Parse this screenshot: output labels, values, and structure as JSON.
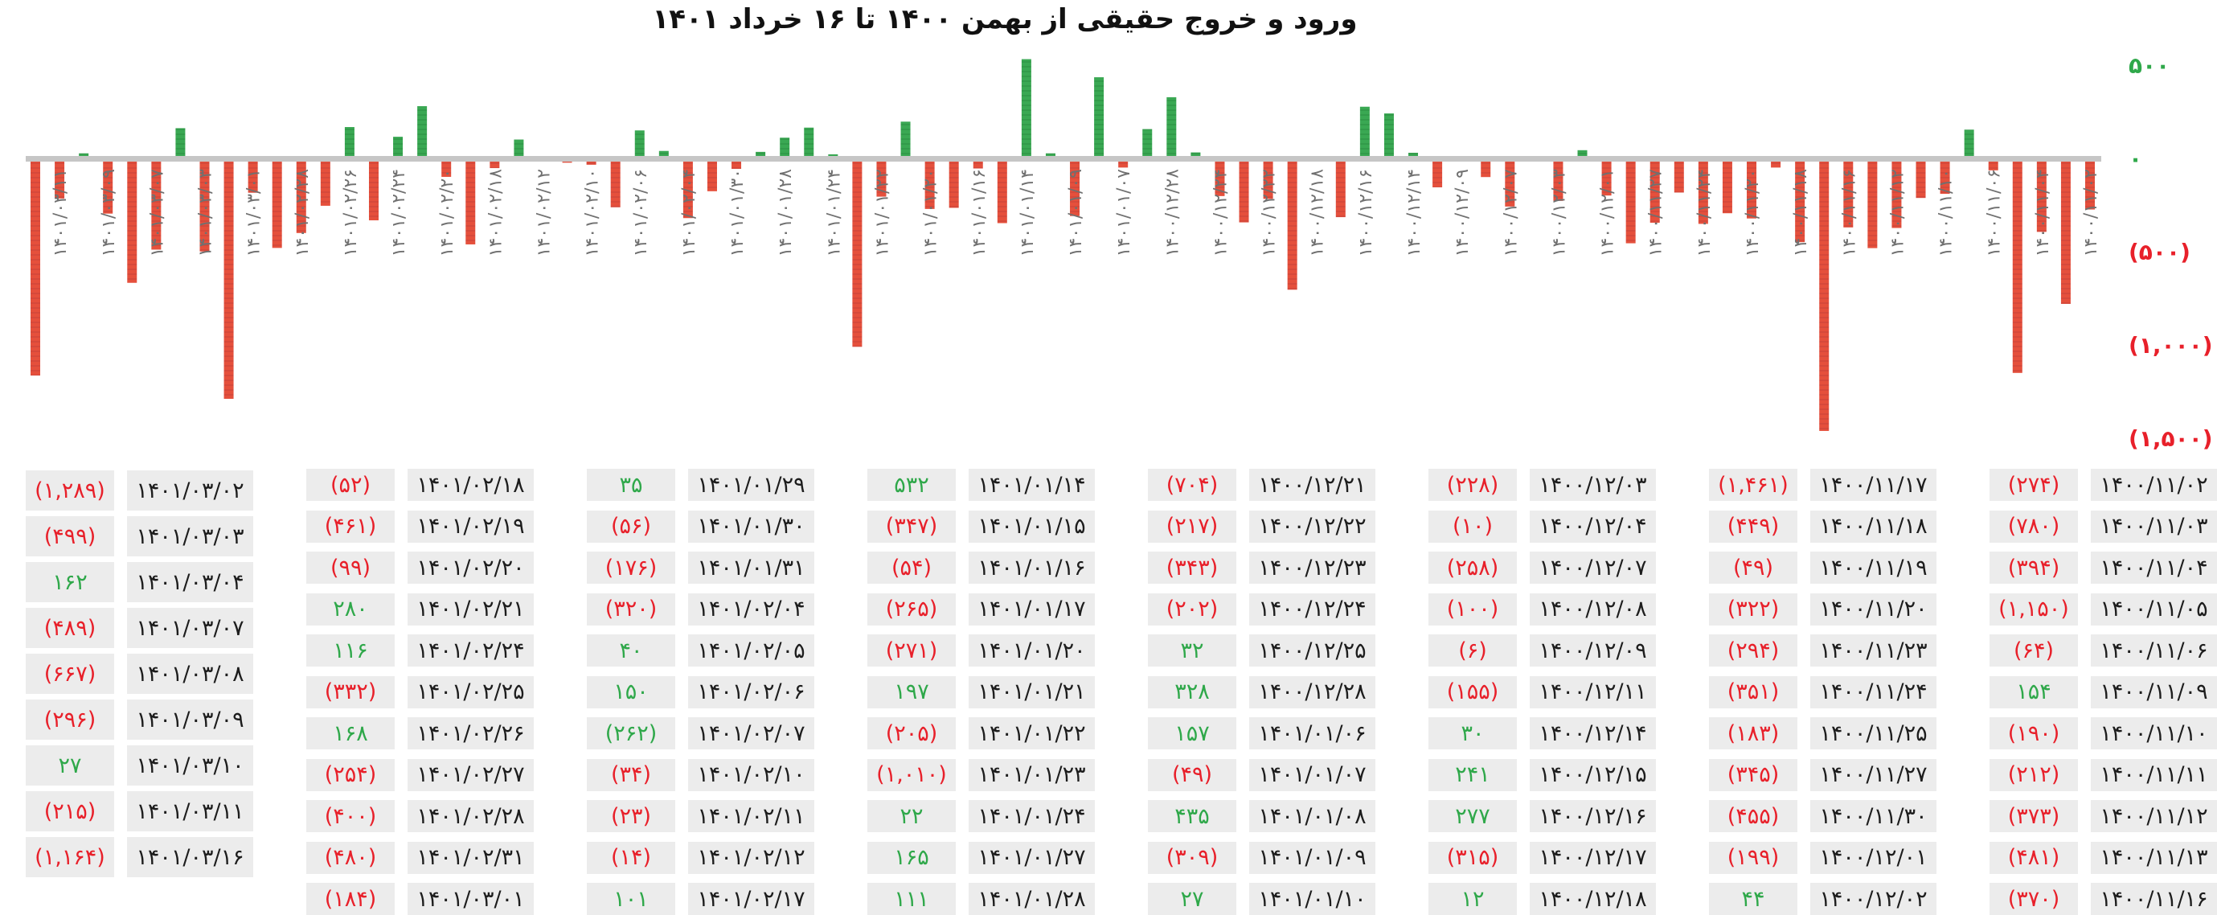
{
  "title": "ورود و خروج حقیقی  از بهمن ۱۴۰۰ تا ۱۶ خرداد ۱۴۰۱",
  "colors": {
    "positive": "#2fa84a",
    "negative": "#e8202a",
    "bar_positive": "#3aa853",
    "bar_negative": "#e5503c",
    "zero_line": "#c6c6c6",
    "cell_bg": "#ececec"
  },
  "chart_data": {
    "type": "bar",
    "title": "ورود و خروج حقیقی  از بهمن ۱۴۰۰ تا ۱۶ خرداد ۱۴۰۱",
    "x_order": "right-to-left (earliest at right)",
    "ylim": [
      -1500,
      500
    ],
    "y_ticks": [
      500,
      0,
      -500,
      -1000,
      -1500
    ],
    "y_tick_labels": [
      "۵۰۰",
      "۰",
      "(۵۰۰)",
      "(۱,۰۰۰)",
      "(۱,۵۰۰)"
    ],
    "y_axis_position": "right",
    "grid": false,
    "categories": [
      "۱۴۰۰/۱۱/۰۲",
      "۱۴۰۰/۱۱/۰۳",
      "۱۴۰۰/۱۱/۰۴",
      "۱۴۰۰/۱۱/۰۵",
      "۱۴۰۰/۱۱/۰۶",
      "۱۴۰۰/۱۱/۰۹",
      "۱۴۰۰/۱۱/۱۰",
      "۱۴۰۰/۱۱/۱۱",
      "۱۴۰۰/۱۱/۱۲",
      "۱۴۰۰/۱۱/۱۳",
      "۱۴۰۰/۱۱/۱۶",
      "۱۴۰۰/۱۱/۱۷",
      "۱۴۰۰/۱۱/۱۸",
      "۱۴۰۰/۱۱/۱۹",
      "۱۴۰۰/۱۱/۲۰",
      "۱۴۰۰/۱۱/۲۳",
      "۱۴۰۰/۱۱/۲۴",
      "۱۴۰۰/۱۱/۲۵",
      "۱۴۰۰/۱۱/۲۷",
      "۱۴۰۰/۱۱/۳۰",
      "۱۴۰۰/۱۲/۰۱",
      "۱۴۰۰/۱۲/۰۲",
      "۱۴۰۰/۱۲/۰۳",
      "۱۴۰۰/۱۲/۰۴",
      "۱۴۰۰/۱۲/۰۷",
      "۱۴۰۰/۱۲/۰۸",
      "۱۴۰۰/۱۲/۰۹",
      "۱۴۰۰/۱۲/۱۱",
      "۱۴۰۰/۱۲/۱۴",
      "۱۴۰۰/۱۲/۱۵",
      "۱۴۰۰/۱۲/۱۶",
      "۱۴۰۰/۱۲/۱۷",
      "۱۴۰۰/۱۲/۱۸",
      "۱۴۰۰/۱۲/۲۱",
      "۱۴۰۰/۱۲/۲۲",
      "۱۴۰۰/۱۲/۲۳",
      "۱۴۰۰/۱۲/۲۴",
      "۱۴۰۰/۱۲/۲۵",
      "۱۴۰۰/۱۲/۲۸",
      "۱۴۰۱/۰۱/۰۶",
      "۱۴۰۱/۰۱/۰۷",
      "۱۴۰۱/۰۱/۰۸",
      "۱۴۰۱/۰۱/۰۹",
      "۱۴۰۱/۰۱/۱۰",
      "۱۴۰۱/۰۱/۱۴",
      "۱۴۰۱/۰۱/۱۵",
      "۱۴۰۱/۰۱/۱۶",
      "۱۴۰۱/۰۱/۱۷",
      "۱۴۰۱/۰۱/۲۰",
      "۱۴۰۱/۰۱/۲۱",
      "۱۴۰۱/۰۱/۲۲",
      "۱۴۰۱/۰۱/۲۳",
      "۱۴۰۱/۰۱/۲۴",
      "۱۴۰۱/۰۱/۲۷",
      "۱۴۰۱/۰۱/۲۸",
      "۱۴۰۱/۰۱/۲۹",
      "۱۴۰۱/۰۱/۳۰",
      "۱۴۰۱/۰۱/۳۱",
      "۱۴۰۱/۰۲/۰۴",
      "۱۴۰۱/۰۲/۰۵",
      "۱۴۰۱/۰۲/۰۶",
      "۱۴۰۱/۰۲/۰۷",
      "۱۴۰۱/۰۲/۱۰",
      "۱۴۰۱/۰۲/۱۱",
      "۱۴۰۱/۰۲/۱۲",
      "۱۴۰۱/۰۲/۱۷",
      "۱۴۰۱/۰۲/۱۸",
      "۱۴۰۱/۰۲/۱۹",
      "۱۴۰۱/۰۲/۲۰",
      "۱۴۰۱/۰۲/۲۱",
      "۱۴۰۱/۰۲/۲۴",
      "۱۴۰۱/۰۲/۲۵",
      "۱۴۰۱/۰۲/۲۶",
      "۱۴۰۱/۰۲/۲۷",
      "۱۴۰۱/۰۲/۲۸",
      "۱۴۰۱/۰۲/۳۱",
      "۱۴۰۱/۰۳/۰۱",
      "۱۴۰۱/۰۳/۰۲",
      "۱۴۰۱/۰۳/۰۳",
      "۱۴۰۱/۰۳/۰۴",
      "۱۴۰۱/۰۳/۰۷",
      "۱۴۰۱/۰۳/۰۸",
      "۱۴۰۱/۰۳/۰۹",
      "۱۴۰۱/۰۳/۱۰",
      "۱۴۰۱/۰۳/۱۱",
      "۱۴۰۱/۰۳/۱۶"
    ],
    "values": [
      -274,
      -780,
      -394,
      -1150,
      -64,
      154,
      -190,
      -212,
      -373,
      -481,
      -370,
      -1461,
      -449,
      -49,
      -322,
      -294,
      -351,
      -183,
      -345,
      -455,
      -199,
      44,
      -228,
      -10,
      -258,
      -100,
      -6,
      -155,
      30,
      241,
      277,
      -315,
      12,
      -704,
      -217,
      -343,
      -202,
      32,
      328,
      157,
      -49,
      435,
      -309,
      27,
      532,
      -347,
      -54,
      -265,
      -271,
      197,
      -205,
      -1010,
      22,
      165,
      111,
      35,
      -56,
      -176,
      -320,
      40,
      150,
      -262,
      -34,
      -23,
      -14,
      101,
      -52,
      -461,
      -99,
      280,
      116,
      -332,
      168,
      -254,
      -400,
      -480,
      -184,
      -1289,
      -499,
      162,
      -489,
      -667,
      -296,
      27,
      -215,
      -1164
    ]
  },
  "table": {
    "groups": [
      {
        "rows": [
          {
            "date": "۱۴۰۱/۰۳/۰۲",
            "value": "(۱,۲۸۹)",
            "color": "red"
          },
          {
            "date": "۱۴۰۱/۰۳/۰۳",
            "value": "(۴۹۹)",
            "color": "red"
          },
          {
            "date": "۱۴۰۱/۰۳/۰۴",
            "value": "۱۶۲",
            "color": "green"
          },
          {
            "date": "۱۴۰۱/۰۳/۰۷",
            "value": "(۴۸۹)",
            "color": "red"
          },
          {
            "date": "۱۴۰۱/۰۳/۰۸",
            "value": "(۶۶۷)",
            "color": "red"
          },
          {
            "date": "۱۴۰۱/۰۳/۰۹",
            "value": "(۲۹۶)",
            "color": "red"
          },
          {
            "date": "۱۴۰۱/۰۳/۱۰",
            "value": "۲۷",
            "color": "green"
          },
          {
            "date": "۱۴۰۱/۰۳/۱۱",
            "value": "(۲۱۵)",
            "color": "red"
          },
          {
            "date": "۱۴۰۱/۰۳/۱۶",
            "value": "(۱,۱۶۴)",
            "color": "red"
          }
        ]
      },
      {
        "rows": [
          {
            "date": "۱۴۰۱/۰۲/۱۸",
            "value": "(۵۲)",
            "color": "red"
          },
          {
            "date": "۱۴۰۱/۰۲/۱۹",
            "value": "(۴۶۱)",
            "color": "red"
          },
          {
            "date": "۱۴۰۱/۰۲/۲۰",
            "value": "(۹۹)",
            "color": "red"
          },
          {
            "date": "۱۴۰۱/۰۲/۲۱",
            "value": "۲۸۰",
            "color": "green"
          },
          {
            "date": "۱۴۰۱/۰۲/۲۴",
            "value": "۱۱۶",
            "color": "green"
          },
          {
            "date": "۱۴۰۱/۰۲/۲۵",
            "value": "(۳۳۲)",
            "color": "red"
          },
          {
            "date": "۱۴۰۱/۰۲/۲۶",
            "value": "۱۶۸",
            "color": "green"
          },
          {
            "date": "۱۴۰۱/۰۲/۲۷",
            "value": "(۲۵۴)",
            "color": "red"
          },
          {
            "date": "۱۴۰۱/۰۲/۲۸",
            "value": "(۴۰۰)",
            "color": "red"
          },
          {
            "date": "۱۴۰۱/۰۲/۳۱",
            "value": "(۴۸۰)",
            "color": "red"
          },
          {
            "date": "۱۴۰۱/۰۳/۰۱",
            "value": "(۱۸۴)",
            "color": "red"
          }
        ]
      },
      {
        "rows": [
          {
            "date": "۱۴۰۱/۰۱/۲۹",
            "value": "۳۵",
            "color": "green"
          },
          {
            "date": "۱۴۰۱/۰۱/۳۰",
            "value": "(۵۶)",
            "color": "red"
          },
          {
            "date": "۱۴۰۱/۰۱/۳۱",
            "value": "(۱۷۶)",
            "color": "red"
          },
          {
            "date": "۱۴۰۱/۰۲/۰۴",
            "value": "(۳۲۰)",
            "color": "red"
          },
          {
            "date": "۱۴۰۱/۰۲/۰۵",
            "value": "۴۰",
            "color": "green"
          },
          {
            "date": "۱۴۰۱/۰۲/۰۶",
            "value": "۱۵۰",
            "color": "green"
          },
          {
            "date": "۱۴۰۱/۰۲/۰۷",
            "value": "(۲۶۲)",
            "color": "green"
          },
          {
            "date": "۱۴۰۱/۰۲/۱۰",
            "value": "(۳۴)",
            "color": "red"
          },
          {
            "date": "۱۴۰۱/۰۲/۱۱",
            "value": "(۲۳)",
            "color": "red"
          },
          {
            "date": "۱۴۰۱/۰۲/۱۲",
            "value": "(۱۴)",
            "color": "red"
          },
          {
            "date": "۱۴۰۱/۰۲/۱۷",
            "value": "۱۰۱",
            "color": "green"
          }
        ]
      },
      {
        "rows": [
          {
            "date": "۱۴۰۱/۰۱/۱۴",
            "value": "۵۳۲",
            "color": "green"
          },
          {
            "date": "۱۴۰۱/۰۱/۱۵",
            "value": "(۳۴۷)",
            "color": "red"
          },
          {
            "date": "۱۴۰۱/۰۱/۱۶",
            "value": "(۵۴)",
            "color": "red"
          },
          {
            "date": "۱۴۰۱/۰۱/۱۷",
            "value": "(۲۶۵)",
            "color": "red"
          },
          {
            "date": "۱۴۰۱/۰۱/۲۰",
            "value": "(۲۷۱)",
            "color": "red"
          },
          {
            "date": "۱۴۰۱/۰۱/۲۱",
            "value": "۱۹۷",
            "color": "green"
          },
          {
            "date": "۱۴۰۱/۰۱/۲۲",
            "value": "(۲۰۵)",
            "color": "red"
          },
          {
            "date": "۱۴۰۱/۰۱/۲۳",
            "value": "(۱,۰۱۰)",
            "color": "red"
          },
          {
            "date": "۱۴۰۱/۰۱/۲۴",
            "value": "۲۲",
            "color": "green"
          },
          {
            "date": "۱۴۰۱/۰۱/۲۷",
            "value": "۱۶۵",
            "color": "green"
          },
          {
            "date": "۱۴۰۱/۰۱/۲۸",
            "value": "۱۱۱",
            "color": "green"
          }
        ]
      },
      {
        "rows": [
          {
            "date": "۱۴۰۰/۱۲/۲۱",
            "value": "(۷۰۴)",
            "color": "red"
          },
          {
            "date": "۱۴۰۰/۱۲/۲۲",
            "value": "(۲۱۷)",
            "color": "red"
          },
          {
            "date": "۱۴۰۰/۱۲/۲۳",
            "value": "(۳۴۳)",
            "color": "red"
          },
          {
            "date": "۱۴۰۰/۱۲/۲۴",
            "value": "(۲۰۲)",
            "color": "red"
          },
          {
            "date": "۱۴۰۰/۱۲/۲۵",
            "value": "۳۲",
            "color": "green"
          },
          {
            "date": "۱۴۰۰/۱۲/۲۸",
            "value": "۳۲۸",
            "color": "green"
          },
          {
            "date": "۱۴۰۱/۰۱/۰۶",
            "value": "۱۵۷",
            "color": "green"
          },
          {
            "date": "۱۴۰۱/۰۱/۰۷",
            "value": "(۴۹)",
            "color": "red"
          },
          {
            "date": "۱۴۰۱/۰۱/۰۸",
            "value": "۴۳۵",
            "color": "green"
          },
          {
            "date": "۱۴۰۱/۰۱/۰۹",
            "value": "(۳۰۹)",
            "color": "red"
          },
          {
            "date": "۱۴۰۱/۰۱/۱۰",
            "value": "۲۷",
            "color": "green"
          }
        ]
      },
      {
        "rows": [
          {
            "date": "۱۴۰۰/۱۲/۰۳",
            "value": "(۲۲۸)",
            "color": "red"
          },
          {
            "date": "۱۴۰۰/۱۲/۰۴",
            "value": "(۱۰)",
            "color": "red"
          },
          {
            "date": "۱۴۰۰/۱۲/۰۷",
            "value": "(۲۵۸)",
            "color": "red"
          },
          {
            "date": "۱۴۰۰/۱۲/۰۸",
            "value": "(۱۰۰)",
            "color": "red"
          },
          {
            "date": "۱۴۰۰/۱۲/۰۹",
            "value": "(۶)",
            "color": "red"
          },
          {
            "date": "۱۴۰۰/۱۲/۱۱",
            "value": "(۱۵۵)",
            "color": "red"
          },
          {
            "date": "۱۴۰۰/۱۲/۱۴",
            "value": "۳۰",
            "color": "green"
          },
          {
            "date": "۱۴۰۰/۱۲/۱۵",
            "value": "۲۴۱",
            "color": "green"
          },
          {
            "date": "۱۴۰۰/۱۲/۱۶",
            "value": "۲۷۷",
            "color": "green"
          },
          {
            "date": "۱۴۰۰/۱۲/۱۷",
            "value": "(۳۱۵)",
            "color": "red"
          },
          {
            "date": "۱۴۰۰/۱۲/۱۸",
            "value": "۱۲",
            "color": "green"
          }
        ]
      },
      {
        "rows": [
          {
            "date": "۱۴۰۰/۱۱/۱۷",
            "value": "(۱,۴۶۱)",
            "color": "red"
          },
          {
            "date": "۱۴۰۰/۱۱/۱۸",
            "value": "(۴۴۹)",
            "color": "red"
          },
          {
            "date": "۱۴۰۰/۱۱/۱۹",
            "value": "(۴۹)",
            "color": "red"
          },
          {
            "date": "۱۴۰۰/۱۱/۲۰",
            "value": "(۳۲۲)",
            "color": "red"
          },
          {
            "date": "۱۴۰۰/۱۱/۲۳",
            "value": "(۲۹۴)",
            "color": "red"
          },
          {
            "date": "۱۴۰۰/۱۱/۲۴",
            "value": "(۳۵۱)",
            "color": "red"
          },
          {
            "date": "۱۴۰۰/۱۱/۲۵",
            "value": "(۱۸۳)",
            "color": "red"
          },
          {
            "date": "۱۴۰۰/۱۱/۲۷",
            "value": "(۳۴۵)",
            "color": "red"
          },
          {
            "date": "۱۴۰۰/۱۱/۳۰",
            "value": "(۴۵۵)",
            "color": "red"
          },
          {
            "date": "۱۴۰۰/۱۲/۰۱",
            "value": "(۱۹۹)",
            "color": "red"
          },
          {
            "date": "۱۴۰۰/۱۲/۰۲",
            "value": "۴۴",
            "color": "green"
          }
        ]
      },
      {
        "rows": [
          {
            "date": "۱۴۰۰/۱۱/۰۲",
            "value": "(۲۷۴)",
            "color": "red"
          },
          {
            "date": "۱۴۰۰/۱۱/۰۳",
            "value": "(۷۸۰)",
            "color": "red"
          },
          {
            "date": "۱۴۰۰/۱۱/۰۴",
            "value": "(۳۹۴)",
            "color": "red"
          },
          {
            "date": "۱۴۰۰/۱۱/۰۵",
            "value": "(۱,۱۵۰)",
            "color": "red"
          },
          {
            "date": "۱۴۰۰/۱۱/۰۶",
            "value": "(۶۴)",
            "color": "red"
          },
          {
            "date": "۱۴۰۰/۱۱/۰۹",
            "value": "۱۵۴",
            "color": "green"
          },
          {
            "date": "۱۴۰۰/۱۱/۱۰",
            "value": "(۱۹۰)",
            "color": "red"
          },
          {
            "date": "۱۴۰۰/۱۱/۱۱",
            "value": "(۲۱۲)",
            "color": "red"
          },
          {
            "date": "۱۴۰۰/۱۱/۱۲",
            "value": "(۳۷۳)",
            "color": "red"
          },
          {
            "date": "۱۴۰۰/۱۱/۱۳",
            "value": "(۴۸۱)",
            "color": "red"
          },
          {
            "date": "۱۴۰۰/۱۱/۱۶",
            "value": "(۳۷۰)",
            "color": "red"
          }
        ]
      }
    ]
  }
}
